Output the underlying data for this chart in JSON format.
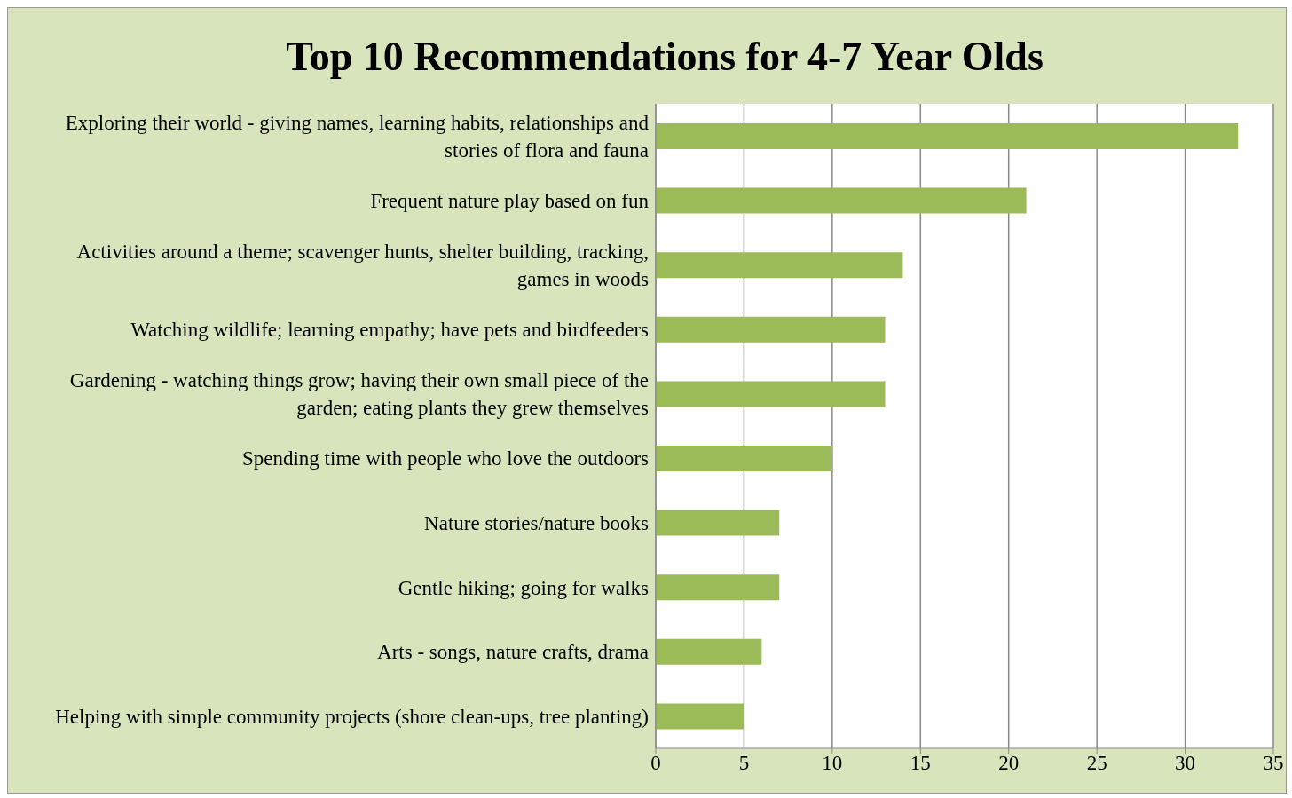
{
  "chart_data": {
    "type": "bar",
    "orientation": "horizontal",
    "title": "Top 10 Recommendations for 4-7 Year Olds",
    "categories": [
      "Exploring their world - giving names, learning habits, relationships and stories of flora and fauna",
      "Frequent nature play based on fun",
      "Activities around a theme; scavenger hunts, shelter building, tracking, games in woods",
      "Watching wildlife; learning empathy; have pets and birdfeeders",
      "Gardening - watching things grow; having their own small piece of the garden; eating plants they grew themselves",
      "Spending time with people who love the outdoors",
      "Nature stories/nature books",
      "Gentle hiking; going for walks",
      "Arts - songs, nature crafts, drama",
      "Helping with simple community projects (shore clean-ups, tree planting)"
    ],
    "values": [
      33,
      21,
      14,
      13,
      13,
      10,
      7,
      7,
      6,
      5
    ],
    "color": "#9bbb59",
    "xlim": [
      0,
      35
    ],
    "xticks": [
      0,
      5,
      10,
      15,
      20,
      25,
      30,
      35
    ],
    "grid": "x",
    "legend": false
  }
}
